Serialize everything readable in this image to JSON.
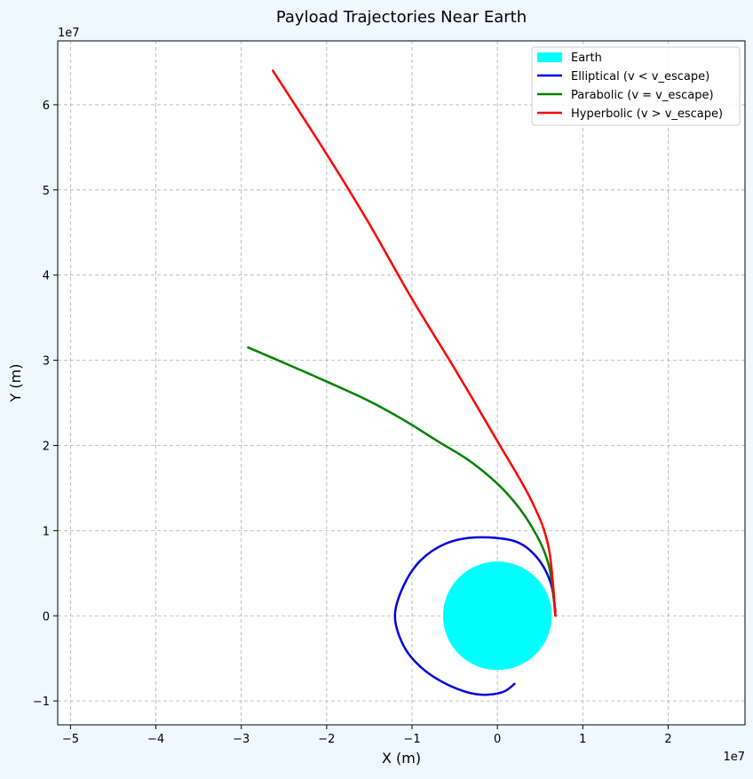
{
  "chart_data": {
    "type": "line",
    "title": "Payload Trajectories Near Earth",
    "xlabel": "X (m)",
    "ylabel": "Y (m)",
    "x_offset_label": "1e7",
    "y_offset_label": "1e7",
    "xlim": [
      -5.15,
      2.9
    ],
    "ylim": [
      -1.28,
      6.75
    ],
    "xticks": [
      -5,
      -4,
      -3,
      -2,
      -1,
      0,
      1,
      2
    ],
    "yticks": [
      -1,
      0,
      1,
      2,
      3,
      4,
      5,
      6
    ],
    "xtick_labels": [
      "−5",
      "−4",
      "−3",
      "−2",
      "−1",
      "0",
      "1",
      "2"
    ],
    "ytick_labels": [
      "−1",
      "0",
      "1",
      "2",
      "3",
      "4",
      "5",
      "6"
    ],
    "grid": true,
    "legend_position": "top-right",
    "earth": {
      "name": "Earth",
      "center": [
        0,
        0
      ],
      "radius": 0.637,
      "color": "#00ffff"
    },
    "series": [
      {
        "name": "Elliptical (v < v_escape)",
        "color": "#0000dd",
        "x": [
          0.68,
          0.62,
          0.45,
          0.19,
          -0.25,
          -0.6,
          -0.9,
          -1.1,
          -1.2,
          -1.1,
          -0.9,
          -0.6,
          -0.25,
          0.05,
          0.2
        ],
        "y": [
          0.05,
          0.4,
          0.7,
          0.88,
          0.92,
          0.85,
          0.65,
          0.35,
          0.0,
          -0.35,
          -0.6,
          -0.8,
          -0.92,
          -0.9,
          -0.8
        ]
      },
      {
        "name": "Parabolic (v = v_escape)",
        "color": "#008000",
        "x": [
          0.68,
          0.6,
          0.4,
          0.1,
          -0.3,
          -0.7,
          -1.1,
          -1.5,
          -2.0,
          -2.5,
          -2.92
        ],
        "y": [
          0.0,
          0.6,
          1.05,
          1.45,
          1.8,
          2.05,
          2.3,
          2.52,
          2.75,
          2.97,
          3.15
        ]
      },
      {
        "name": "Hyperbolic (v > v_escape)",
        "color": "#ff0000",
        "x": [
          0.68,
          0.6,
          0.4,
          0.0,
          -0.5,
          -1.0,
          -1.5,
          -2.0,
          -2.63
        ],
        "y": [
          0.0,
          0.8,
          1.35,
          2.05,
          2.9,
          3.72,
          4.6,
          5.42,
          6.4
        ]
      }
    ]
  }
}
